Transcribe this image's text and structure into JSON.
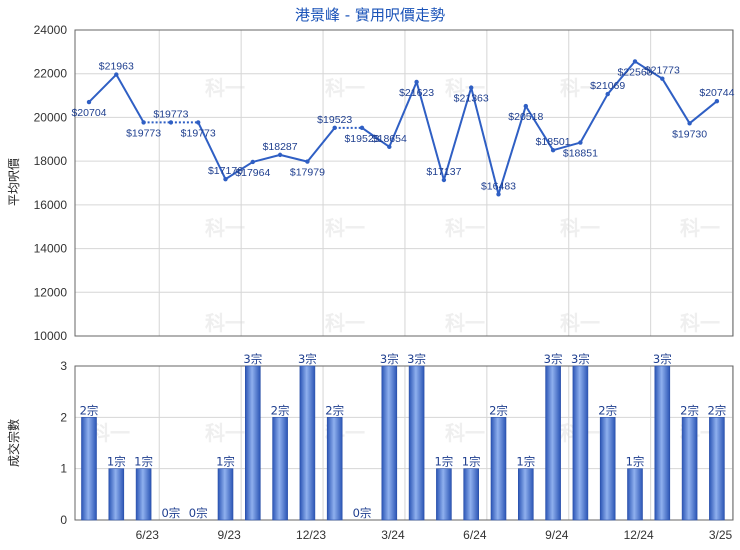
{
  "chart_data": [
    {
      "type": "line",
      "title": "港景峰 - 實用呎價走勢",
      "ylabel": "平均呎價",
      "ylim": [
        10000,
        24000
      ],
      "yticks": [
        10000,
        12000,
        14000,
        16000,
        18000,
        20000,
        22000,
        24000
      ],
      "x_tick_labels": [
        "6/23",
        "9/23",
        "12/23",
        "3/24",
        "6/24",
        "9/24",
        "12/24",
        "3/25"
      ],
      "values": [
        20704,
        21963,
        19773,
        19773,
        19773,
        17176,
        17964,
        18287,
        17979,
        19523,
        19523,
        18654,
        21623,
        17137,
        21363,
        16483,
        20518,
        18501,
        18851,
        21069,
        22563,
        21773,
        19730,
        20744
      ],
      "labels": [
        "$20704",
        "$21963",
        "$19773",
        "$19773",
        "$19773",
        "$17176",
        "$17964",
        "$18287",
        "$17979",
        "$19523",
        "$19523",
        "$18654",
        "$21623",
        "$17137",
        "$21363",
        "$16483",
        "$20518",
        "$18501",
        "$18851",
        "$21069",
        "$22563",
        "$21773",
        "$19730",
        "$20744"
      ],
      "dotted_segments": [
        [
          2,
          4
        ],
        [
          9,
          10
        ]
      ],
      "line_color": "#2f5fc4",
      "grid": true
    },
    {
      "type": "bar",
      "ylabel": "成交宗數",
      "ylim": [
        0,
        3
      ],
      "yticks": [
        0,
        1,
        2,
        3
      ],
      "x_tick_labels": [
        "6/23",
        "9/23",
        "12/23",
        "3/24",
        "6/24",
        "9/24",
        "12/24",
        "3/25"
      ],
      "values": [
        2,
        1,
        1,
        0,
        0,
        1,
        3,
        2,
        3,
        2,
        0,
        3,
        3,
        1,
        1,
        2,
        1,
        3,
        3,
        2,
        1,
        3,
        2,
        2
      ],
      "labels": [
        "2宗",
        "1宗",
        "1宗",
        "0宗",
        "0宗",
        "1宗",
        "3宗",
        "2宗",
        "3宗",
        "2宗",
        "0宗",
        "3宗",
        "3宗",
        "1宗",
        "1宗",
        "2宗",
        "1宗",
        "3宗",
        "3宗",
        "2宗",
        "1宗",
        "3宗",
        "2宗",
        "2宗"
      ],
      "bar_color": "#3f6fd0",
      "grid": true
    }
  ],
  "watermark": "科一"
}
